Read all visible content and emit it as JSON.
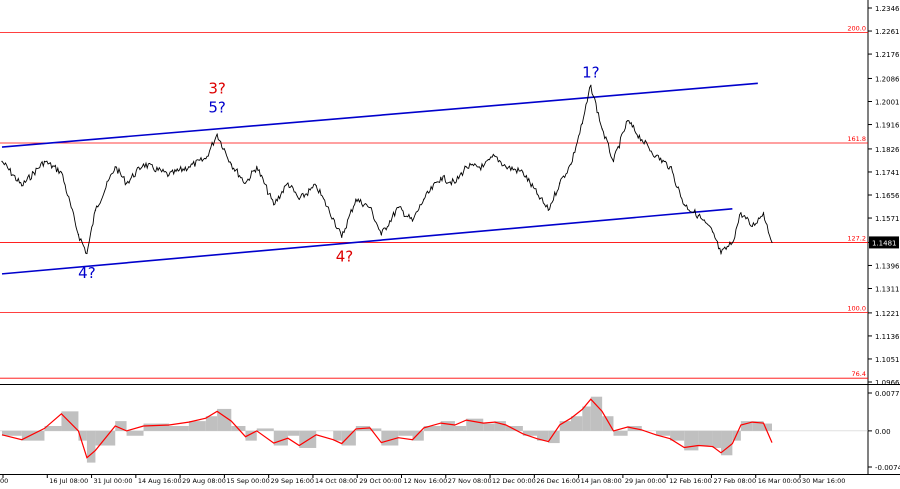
{
  "chart_data": [
    {
      "type": "line",
      "panel": "price",
      "ylim": [
        1.0966,
        1.2346
      ],
      "y_ticks": [
        "1.2346",
        "1.2261",
        "1.2176",
        "1.2086",
        "1.2001",
        "1.1916",
        "1.1826",
        "1.1741",
        "1.1656",
        "1.1571",
        "1.1481",
        "1.1396",
        "1.1311",
        "1.1221",
        "1.1136",
        "1.1051",
        "1.0966"
      ],
      "current_price": "1.1481",
      "fib_levels": [
        {
          "label": "200.0",
          "value": 1.2256
        },
        {
          "label": "161.8",
          "value": 1.1848
        },
        {
          "label": "127.2",
          "value": 1.1481
        },
        {
          "label": "100.0",
          "value": 1.1222
        },
        {
          "label": "76.4",
          "value": 1.098
        }
      ],
      "x_ticks": [
        "00",
        "16 Jul 08:00",
        "31 Jul 00:00",
        "14 Aug 16:00",
        "29 Aug 08:00",
        "15 Sep 00:00",
        "29 Sep 16:00",
        "14 Oct 08:00",
        "29 Oct 00:00",
        "12 Nov 16:00",
        "27 Nov 08:00",
        "12 Dec 00:00",
        "26 Dec 16:00",
        "14 Jan 08:00",
        "29 Jan 00:00",
        "12 Feb 16:00",
        "27 Feb 08:00",
        "16 Mar 00:00",
        "30 Mar 16:00"
      ],
      "series": [
        {
          "x": [
            "1 Jul",
            "8 Jul",
            "16 Jul",
            "22 Jul",
            "28 Jul",
            "31 Jul",
            "3 Aug",
            "10 Aug",
            "14 Aug",
            "20 Aug",
            "29 Aug",
            "5 Sep",
            "11 Sep",
            "15 Sep",
            "20 Sep",
            "25 Sep",
            "29 Sep",
            "5 Oct",
            "10 Oct",
            "14 Oct",
            "20 Oct",
            "26 Oct",
            "29 Oct",
            "3 Nov",
            "8 Nov",
            "12 Nov",
            "18 Nov",
            "23 Nov",
            "27 Nov",
            "3 Dec",
            "8 Dec",
            "12 Dec",
            "18 Dec",
            "22 Dec",
            "26 Dec",
            "1 Jan",
            "6 Jan",
            "10 Jan",
            "14 Jan",
            "18 Jan",
            "22 Jan",
            "25 Jan",
            "29 Jan",
            "2 Feb",
            "7 Feb",
            "12 Feb",
            "17 Feb",
            "22 Feb",
            "27 Feb",
            "4 Mar",
            "9 Mar",
            "12 Mar",
            "16 Mar",
            "19 Mar",
            "23 Mar",
            "27 Mar",
            "30 Mar"
          ],
          "values": [
            1.178,
            1.169,
            1.178,
            1.174,
            1.151,
            1.144,
            1.16,
            1.176,
            1.17,
            1.177,
            1.173,
            1.176,
            1.179,
            1.188,
            1.177,
            1.17,
            1.176,
            1.162,
            1.17,
            1.164,
            1.169,
            1.157,
            1.15,
            1.164,
            1.161,
            1.151,
            1.161,
            1.156,
            1.164,
            1.172,
            1.17,
            1.176,
            1.176,
            1.18,
            1.176,
            1.174,
            1.166,
            1.16,
            1.17,
            1.177,
            1.192,
            1.206,
            1.19,
            1.178,
            1.193,
            1.186,
            1.18,
            1.176,
            1.162,
            1.158,
            1.152,
            1.144,
            1.148,
            1.159,
            1.154,
            1.159,
            1.1481
          ]
        }
      ],
      "trendlines": [
        {
          "name": "upper channel",
          "color": "#0000cc",
          "points": [
            [
              "1 Jul",
              1.1833
            ],
            [
              "25 Mar",
              1.2068
            ]
          ]
        },
        {
          "name": "lower channel",
          "color": "#0000cc",
          "points": [
            [
              "1 Jul",
              1.1365
            ],
            [
              "16 Mar",
              1.1605
            ]
          ]
        }
      ],
      "annotations": [
        {
          "text": "3?",
          "color": "#dd0000",
          "x": "15 Sep",
          "y": 1.203
        },
        {
          "text": "5?",
          "color": "#0000cc",
          "x": "15 Sep",
          "y": 1.196
        },
        {
          "text": "1?",
          "color": "#0000cc",
          "x": "25 Jan",
          "y": 1.209
        },
        {
          "text": "4?",
          "color": "#0000cc",
          "x": "31 Jul",
          "y": 1.135
        },
        {
          "text": "4?",
          "color": "#dd0000",
          "x": "30 Oct",
          "y": 1.141
        }
      ],
      "colors": {
        "price": "#000000",
        "channel": "#0000cc",
        "fib": "#ff0000",
        "label_red": "#dd0000",
        "label_blue": "#0000cc"
      }
    },
    {
      "type": "bar",
      "panel": "oscillator",
      "ylim": [
        -0.0074,
        0.00776
      ],
      "y_ticks": [
        "0.00776",
        "0.00",
        "-0.0074"
      ],
      "series": [
        {
          "name": "histogram",
          "x": [
            "1 Jul",
            "8 Jul",
            "16 Jul",
            "22 Jul",
            "28 Jul",
            "31 Jul",
            "3 Aug",
            "10 Aug",
            "14 Aug",
            "20 Aug",
            "29 Aug",
            "5 Sep",
            "11 Sep",
            "15 Sep",
            "20 Sep",
            "25 Sep",
            "29 Sep",
            "5 Oct",
            "10 Oct",
            "14 Oct",
            "20 Oct",
            "26 Oct",
            "29 Oct",
            "3 Nov",
            "8 Nov",
            "12 Nov",
            "18 Nov",
            "23 Nov",
            "27 Nov",
            "3 Dec",
            "8 Dec",
            "12 Dec",
            "18 Dec",
            "22 Dec",
            "26 Dec",
            "1 Jan",
            "6 Jan",
            "10 Jan",
            "14 Jan",
            "18 Jan",
            "22 Jan",
            "25 Jan",
            "29 Jan",
            "2 Feb",
            "7 Feb",
            "12 Feb",
            "17 Feb",
            "22 Feb",
            "27 Feb",
            "4 Mar",
            "9 Mar",
            "12 Mar",
            "16 Mar",
            "19 Mar",
            "23 Mar",
            "27 Mar",
            "30 Mar"
          ],
          "values": [
            -0.001,
            -0.002,
            0.001,
            0.004,
            -0.002,
            -0.0065,
            -0.003,
            0.002,
            -0.001,
            0.0015,
            0.001,
            0.002,
            0.003,
            0.0045,
            0.001,
            -0.002,
            0.0005,
            -0.003,
            -0.001,
            -0.0035,
            0.0,
            -0.002,
            -0.003,
            0.001,
            0.0005,
            -0.003,
            -0.001,
            -0.002,
            0.001,
            0.002,
            0.001,
            0.0025,
            0.0015,
            0.002,
            0.001,
            -0.001,
            -0.002,
            -0.0025,
            0.002,
            0.003,
            0.005,
            0.007,
            0.003,
            -0.001,
            0.001,
            0.0,
            -0.001,
            -0.002,
            -0.004,
            -0.003,
            -0.0035,
            -0.005,
            -0.002,
            0.002,
            0.002,
            0.0015,
            -0.003
          ]
        },
        {
          "name": "signal",
          "x": [
            "1 Jul",
            "8 Jul",
            "16 Jul",
            "22 Jul",
            "28 Jul",
            "31 Jul",
            "3 Aug",
            "10 Aug",
            "14 Aug",
            "20 Aug",
            "29 Aug",
            "5 Sep",
            "11 Sep",
            "15 Sep",
            "20 Sep",
            "25 Sep",
            "29 Sep",
            "5 Oct",
            "10 Oct",
            "14 Oct",
            "20 Oct",
            "26 Oct",
            "29 Oct",
            "3 Nov",
            "8 Nov",
            "12 Nov",
            "18 Nov",
            "23 Nov",
            "27 Nov",
            "3 Dec",
            "8 Dec",
            "12 Dec",
            "18 Dec",
            "22 Dec",
            "26 Dec",
            "1 Jan",
            "6 Jan",
            "10 Jan",
            "14 Jan",
            "18 Jan",
            "22 Jan",
            "25 Jan",
            "29 Jan",
            "2 Feb",
            "7 Feb",
            "12 Feb",
            "17 Feb",
            "22 Feb",
            "27 Feb",
            "4 Mar",
            "9 Mar",
            "12 Mar",
            "16 Mar",
            "19 Mar",
            "23 Mar",
            "27 Mar",
            "30 Mar"
          ],
          "values": [
            -0.0008,
            -0.0018,
            0.0005,
            0.0035,
            0.0,
            -0.0055,
            -0.004,
            0.001,
            0.0,
            0.001,
            0.0012,
            0.0018,
            0.0026,
            0.004,
            0.002,
            -0.0012,
            0.0,
            -0.0025,
            -0.0015,
            -0.003,
            -0.0008,
            -0.0018,
            -0.0026,
            0.0004,
            0.0006,
            -0.0024,
            -0.0014,
            -0.0018,
            0.0006,
            0.0016,
            0.0012,
            0.0022,
            0.0016,
            0.0018,
            0.0012,
            -0.0006,
            -0.0016,
            -0.0022,
            0.0012,
            0.0026,
            0.0044,
            0.0065,
            0.004,
            0.0,
            0.0008,
            0.0002,
            -0.0008,
            -0.0016,
            -0.0034,
            -0.003,
            -0.0032,
            -0.0045,
            -0.0026,
            0.0012,
            0.0018,
            0.0016,
            -0.0024
          ]
        }
      ],
      "colors": {
        "histogram": "#c0c0c0",
        "signal": "#ff0000"
      }
    }
  ]
}
